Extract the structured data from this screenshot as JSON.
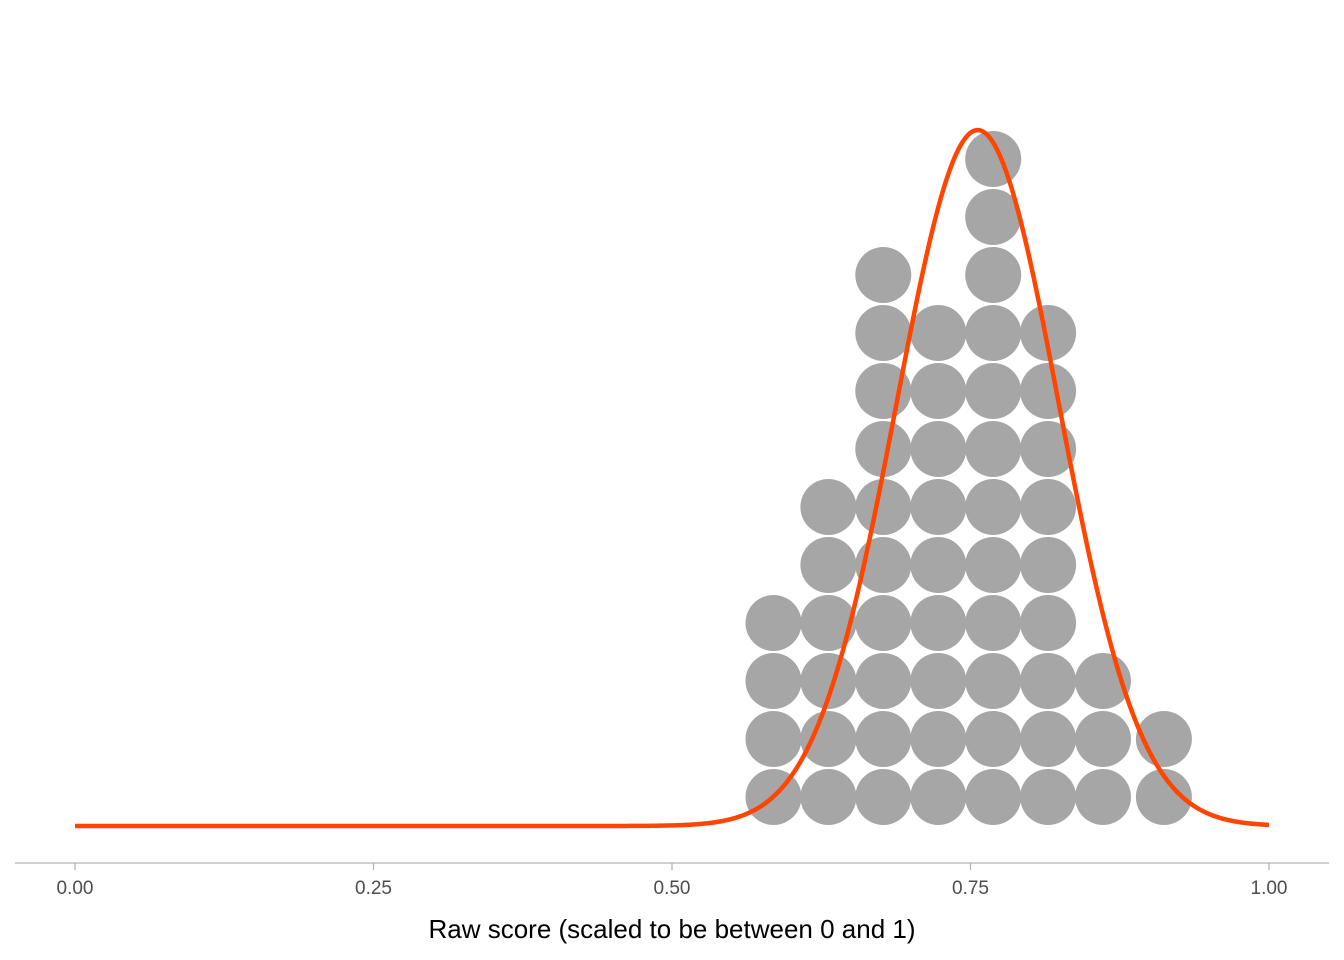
{
  "chart_data": {
    "type": "dotplot",
    "title": "",
    "xlabel": "Raw score (scaled to be between 0 and 1)",
    "ylabel": "",
    "xlim": [
      0,
      1
    ],
    "x_ticks": [
      0,
      0.25,
      0.5,
      0.75,
      1
    ],
    "x_tick_labels": [
      "0.00",
      "0.25",
      "0.50",
      "0.75",
      "1.00"
    ],
    "grid": false,
    "legend": "none",
    "dot_color": "#a6a6a6",
    "curve_color": "#ff4500",
    "axis_color": "#b3b3b3",
    "dot_stacks": [
      {
        "x": 0.585,
        "count": 4
      },
      {
        "x": 0.631,
        "count": 6
      },
      {
        "x": 0.677,
        "count": 10
      },
      {
        "x": 0.723,
        "count": 9
      },
      {
        "x": 0.769,
        "count": 12
      },
      {
        "x": 0.815,
        "count": 9
      },
      {
        "x": 0.861,
        "count": 3
      },
      {
        "x": 0.912,
        "count": 2
      }
    ],
    "curve": {
      "type": "normal-density",
      "mean": 0.756,
      "sd": 0.068,
      "x_range": [
        0,
        1
      ]
    }
  }
}
